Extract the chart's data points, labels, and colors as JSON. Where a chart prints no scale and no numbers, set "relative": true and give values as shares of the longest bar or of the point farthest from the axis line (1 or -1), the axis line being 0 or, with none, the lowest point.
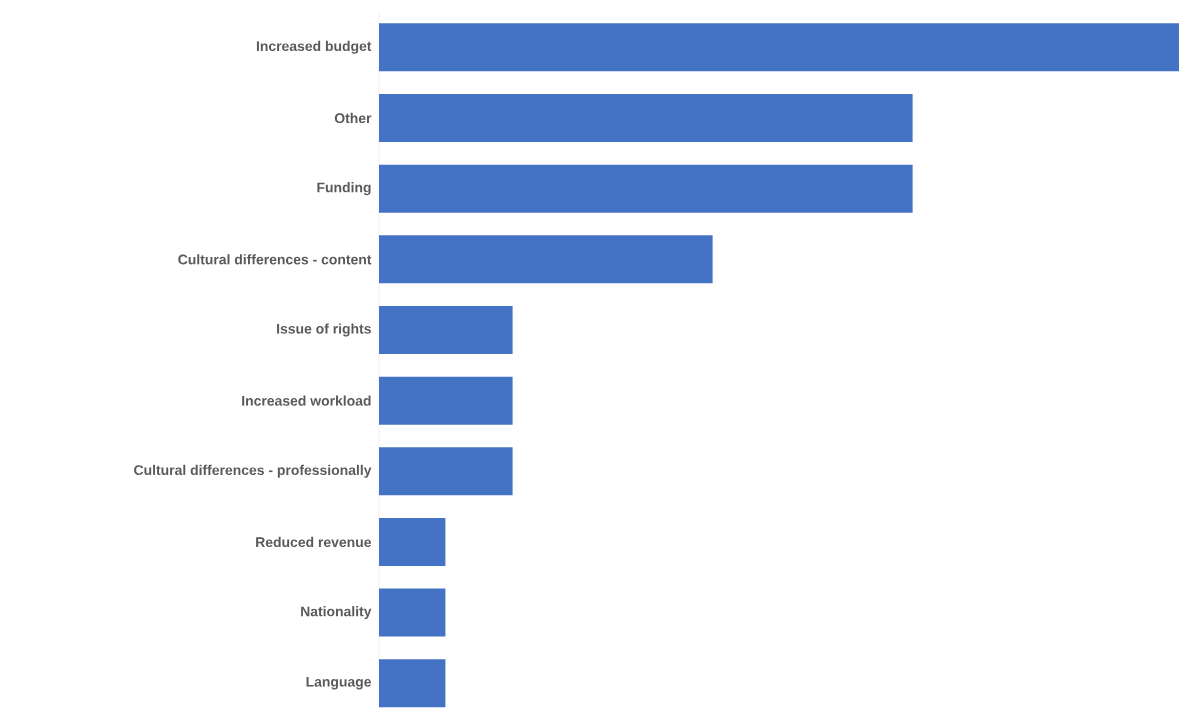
{
  "chart_data": {
    "type": "bar",
    "orientation": "horizontal",
    "relative": true,
    "color": "#4472c4",
    "categories": [
      "Increased budget",
      "Other",
      "Funding",
      "Cultural differences - content",
      "Issue of rights",
      "Increased workload",
      "Cultural differences - professionally",
      "Reduced revenue",
      "Nationality",
      "Language"
    ],
    "values": [
      1,
      0.667,
      0.667,
      0.417,
      0.167,
      0.167,
      0.167,
      0.083,
      0.083,
      0.083
    ]
  }
}
